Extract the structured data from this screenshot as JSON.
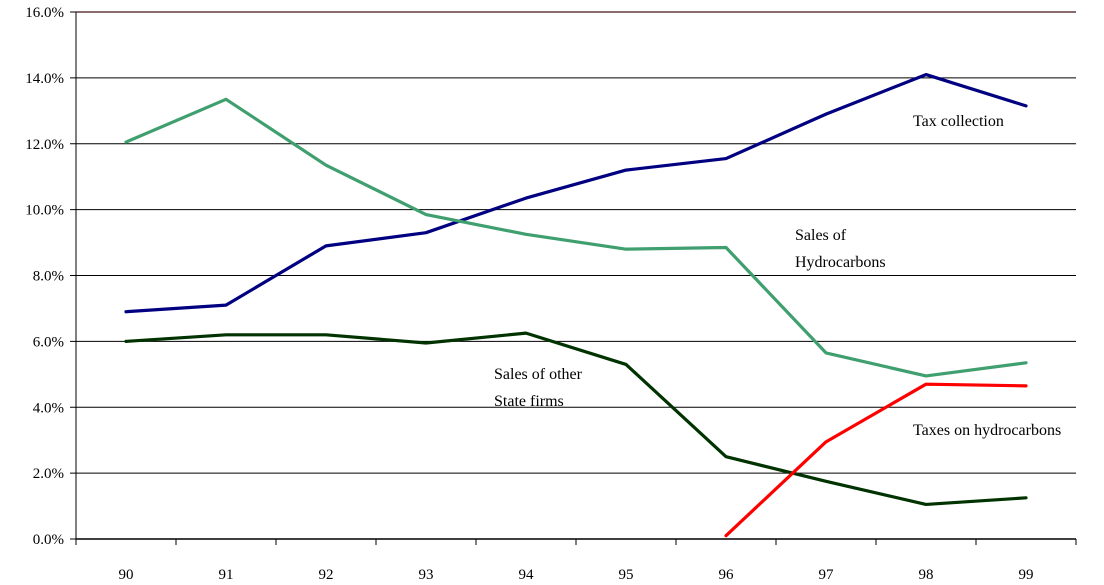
{
  "chart_data": {
    "type": "line",
    "x": [
      "90",
      "91",
      "92",
      "93",
      "94",
      "95",
      "96",
      "97",
      "98",
      "99"
    ],
    "ylim": [
      0,
      16
    ],
    "y_ticks": [
      "0.0%",
      "2.0%",
      "4.0%",
      "6.0%",
      "8.0%",
      "10.0%",
      "12.0%",
      "14.0%",
      "16.0%"
    ],
    "grid": "horizontal",
    "series": [
      {
        "name": "Tax collection",
        "color": "#000080",
        "values": [
          6.9,
          7.1,
          8.9,
          9.3,
          10.35,
          11.2,
          11.55,
          12.9,
          14.1,
          13.15
        ]
      },
      {
        "name": "Sales of Hydrocarbons",
        "color": "#3f9f6f",
        "values": [
          12.05,
          13.35,
          11.35,
          9.85,
          9.25,
          8.8,
          8.85,
          5.65,
          4.95,
          5.35
        ]
      },
      {
        "name": "Sales of other State firms",
        "color": "#003300",
        "values": [
          6.0,
          6.2,
          6.2,
          5.95,
          6.25,
          5.3,
          2.5,
          1.75,
          1.05,
          1.25
        ]
      },
      {
        "name": "Taxes on hydrocarbons",
        "color": "#ff0000",
        "values": [
          null,
          null,
          null,
          null,
          null,
          null,
          0.1,
          2.95,
          4.7,
          4.65
        ]
      }
    ],
    "annotations": [
      {
        "lines": [
          "Tax collection"
        ],
        "series": "Tax collection"
      },
      {
        "lines": [
          "Sales of",
          "Hydrocarbons"
        ],
        "series": "Sales of Hydrocarbons"
      },
      {
        "lines": [
          "Sales of other",
          "State firms"
        ],
        "series": "Sales of other State firms"
      },
      {
        "lines": [
          "Taxes on hydrocarbons"
        ],
        "series": "Taxes on hydrocarbons"
      }
    ],
    "top_border_color": "#8b6b6b"
  }
}
